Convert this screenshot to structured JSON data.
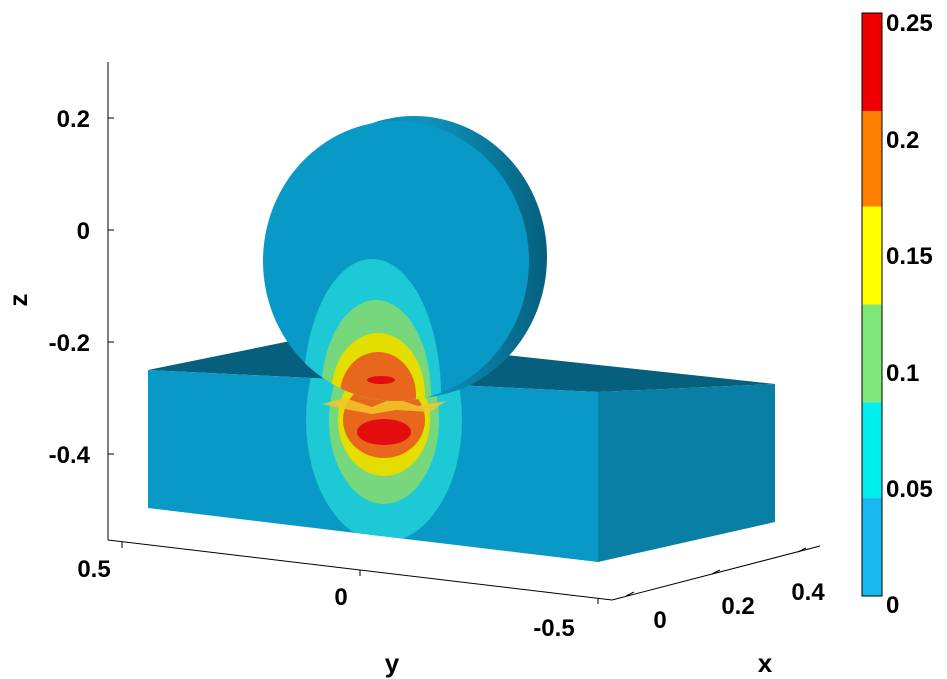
{
  "chart_data": {
    "type": "3d-surface",
    "title": "",
    "xlabel": "x",
    "ylabel": "y",
    "zlabel": "z",
    "z_ticks": [
      0.2,
      0,
      -0.2,
      -0.4
    ],
    "z_tick_labels": [
      "0.2",
      "0",
      "-0.2",
      "-0.4"
    ],
    "y_ticks": [
      0.5,
      0,
      -0.5
    ],
    "y_tick_labels": [
      "0.5",
      "0",
      "-0.5"
    ],
    "x_ticks": [
      0,
      0.2,
      0.4
    ],
    "x_tick_labels": [
      "0",
      "0.2",
      "0.4"
    ],
    "zlim": [
      -0.5,
      0.3
    ],
    "ylim": [
      -0.5,
      0.5
    ],
    "xlim": [
      0,
      0.5
    ],
    "grid": false,
    "colorbar": {
      "min": 0,
      "max": 0.25,
      "ticks": [
        0.25,
        0.2,
        0.15,
        0.1,
        0.05,
        0
      ],
      "tick_labels": [
        "0.25",
        "0.2",
        "0.15",
        "0.1",
        "0.05",
        "0"
      ],
      "levels": [
        {
          "from": 0,
          "to": 0.042,
          "color": "#17b9f0"
        },
        {
          "from": 0.042,
          "to": 0.083,
          "color": "#00eeee"
        },
        {
          "from": 0.083,
          "to": 0.125,
          "color": "#7ee77a"
        },
        {
          "from": 0.125,
          "to": 0.167,
          "color": "#ffff00"
        },
        {
          "from": 0.167,
          "to": 0.208,
          "color": "#ff7f00"
        },
        {
          "from": 0.208,
          "to": 0.25,
          "color": "#ee0000"
        }
      ]
    }
  }
}
